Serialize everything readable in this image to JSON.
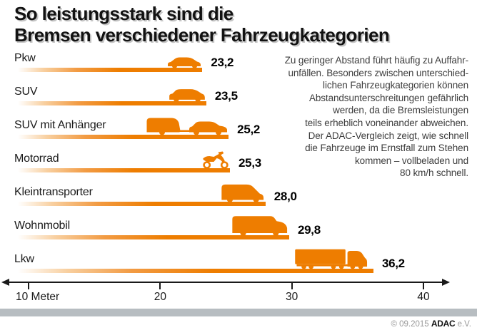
{
  "title": {
    "line1": "So leistungsstark sind die",
    "line2": "Bremsen verschiedener Fahrzeugkategorien"
  },
  "description": "Zu geringer Abstand führt häufig zu Auffahr-\nunfällen. Besonders zwischen unterschied-\nlichen Fahrzeugkategorien können\nAbstandsunterschreitungen gefährlich\nwerden, da die Bremsleistungen\nteils erheblich voneinander abweichen.\nDer ADAC-Vergleich zeigt, wie schnell\ndie Fahrzeuge im Ernstfall zum Stehen\nkommen – vollbeladen und\n80 km/h schnell.",
  "chart_data": {
    "type": "bar",
    "orientation": "horizontal",
    "title": "So leistungsstark sind die Bremsen verschiedener Fahrzeugkategorien",
    "unit": "Meter",
    "xlabel": "Meter",
    "x_axis": {
      "range": [
        10,
        40
      ],
      "ticks": [
        10,
        20,
        30,
        40
      ],
      "tick_labels": [
        "10 Meter",
        "20",
        "30",
        "40"
      ]
    },
    "items": [
      {
        "label": "Pkw",
        "value": 23.2,
        "value_label": "23,2",
        "icon": "car-icon"
      },
      {
        "label": "SUV",
        "value": 23.5,
        "value_label": "23,5",
        "icon": "suv-icon"
      },
      {
        "label": "SUV mit Anhänger",
        "value": 25.2,
        "value_label": "25,2",
        "icon": "suv-with-trailer-icon"
      },
      {
        "label": "Motorrad",
        "value": 25.3,
        "value_label": "25,3",
        "icon": "motorcycle-icon"
      },
      {
        "label": "Kleintransporter",
        "value": 28.0,
        "value_label": "28,0",
        "icon": "van-icon"
      },
      {
        "label": "Wohnmobil",
        "value": 29.8,
        "value_label": "29,8",
        "icon": "camper-icon"
      },
      {
        "label": "Lkw",
        "value": 36.2,
        "value_label": "36,2",
        "icon": "truck-icon"
      }
    ],
    "legend": null,
    "grid": false
  },
  "colors": {
    "accent": "#ee7d00",
    "title_text": "#121212",
    "paragraph_text": "#3d3d3d",
    "axis": "#1a1a1a",
    "gray_strip": "#b7bdc1",
    "footer_text": "#999999"
  },
  "footer": {
    "copyright": "© 09.2015",
    "brand": "ADAC",
    "suffix": "e.V."
  }
}
